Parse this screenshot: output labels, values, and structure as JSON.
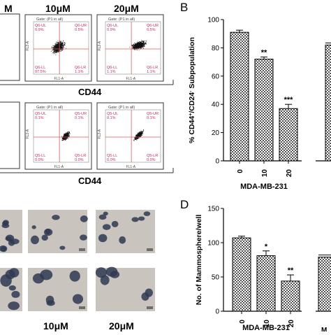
{
  "panel_a": {
    "col_labels": [
      "M",
      "10μM",
      "20μM"
    ],
    "xaxis_label_top": "CD44",
    "xaxis_label_bottom": "CD44",
    "plot_gate": "Gate: (P1 in all)",
    "plot_ylabel": "FL2-A",
    "plot_xlabel": "FL1-A",
    "quad_top": [
      {
        "ul": "Q6-UL",
        "ul_v": "0.9%",
        "ur": "Q6-UR",
        "ur_v": "0.5%",
        "ll": "Q6-LL",
        "ll_v": "97.5%",
        "lr": "Q6-LR",
        "lr_v": "1.1%"
      },
      {
        "ul": "Q6-UL",
        "ul_v": "0.9%",
        "ur": "Q6-UR",
        "ur_v": "0.5%",
        "ll": "Q6-LL",
        "ll_v": "1.1%",
        "lr": "Q6-LR",
        "lr_v": "1.1%"
      }
    ],
    "quad_bottom": [
      {
        "ul": "Q5-UL",
        "ul_v": "0.1%",
        "ur": "Q5-UR",
        "ur_v": "0.1%",
        "ll": "Q5-LL",
        "ll_v": "0.0%",
        "lr": "Q5-LR",
        "lr_v": "0.0%"
      },
      {
        "ul": "Q5-UL",
        "ul_v": "0.1%",
        "ur": "Q5-UR",
        "ur_v": "0.1%",
        "ll": "Q5-LL",
        "ll_v": "0.0%",
        "lr": "Q5-LR",
        "lr_v": "0.0%"
      }
    ]
  },
  "panel_e": {
    "col_labels": [
      "10μM",
      "20μM"
    ]
  },
  "colors": {
    "bar_pattern": "#555555",
    "scatter": "#111111",
    "gate_line": "#e05a5a",
    "quad_text": "#c03060",
    "photo_bg": "#c9c4bd",
    "sphere": "#2f3a52"
  },
  "chart_data": [
    {
      "panel_letter": "B",
      "type": "bar",
      "categories": [
        "0",
        "10",
        "20"
      ],
      "values": [
        91,
        72,
        37
      ],
      "errors": [
        1.5,
        1.5,
        3
      ],
      "significance": [
        "",
        "**",
        "***"
      ],
      "extra_bar_value": 82,
      "ylabel": "% CD44+/CD24- Subpopulation",
      "ylabel_parts": {
        "a": "% CD44",
        "b": "+",
        "c": "/CD24",
        "d": "-",
        "e": " Subpopulation"
      },
      "xlabel": "MDA-MB-231",
      "ylim": [
        0,
        100
      ],
      "yticks": [
        "0",
        "20",
        "40",
        "60",
        "80",
        "100"
      ]
    },
    {
      "panel_letter": "D",
      "type": "bar",
      "categories": [
        "0",
        "10",
        "20"
      ],
      "values": [
        107,
        81,
        44
      ],
      "errors": [
        2.5,
        7,
        9
      ],
      "significance": [
        "",
        "*",
        "**"
      ],
      "extra_bar_value": 79,
      "extra_label": "M",
      "ylabel": "No. of Mammosphere/well",
      "xlabel": "MDA-MB-231",
      "ylim": [
        0,
        150
      ],
      "yticks": [
        "0",
        "50",
        "100",
        "150"
      ]
    }
  ]
}
